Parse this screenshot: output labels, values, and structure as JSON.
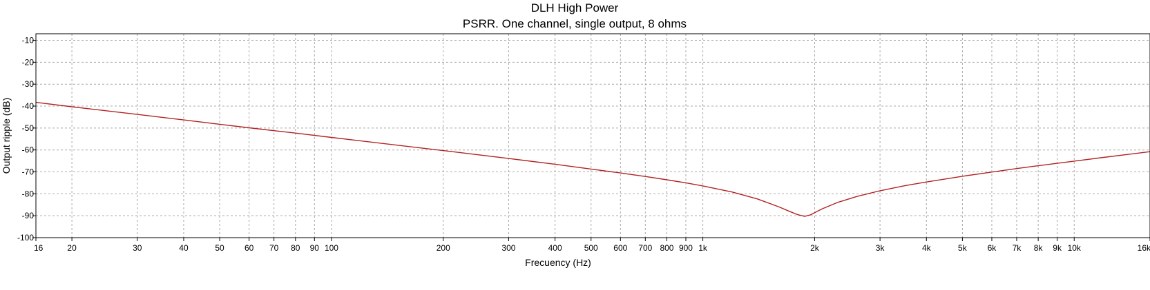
{
  "chart_data": {
    "type": "line",
    "title": "DLH High Power",
    "subtitle": "PSRR. One channel, single output, 8 ohms",
    "xlabel": "Frecuency (Hz)",
    "ylabel": "Output ripple (dB)",
    "x_scale": "log",
    "xlim": [
      16,
      16000
    ],
    "ylim": [
      -100,
      -7
    ],
    "grid": true,
    "x_ticks": [
      {
        "value": 16,
        "label": "16"
      },
      {
        "value": 20,
        "label": "20"
      },
      {
        "value": 30,
        "label": "30"
      },
      {
        "value": 40,
        "label": "40"
      },
      {
        "value": 50,
        "label": "50"
      },
      {
        "value": 60,
        "label": "60"
      },
      {
        "value": 70,
        "label": "70"
      },
      {
        "value": 80,
        "label": "80"
      },
      {
        "value": 90,
        "label": "90"
      },
      {
        "value": 100,
        "label": "100"
      },
      {
        "value": 200,
        "label": "200"
      },
      {
        "value": 300,
        "label": "300"
      },
      {
        "value": 400,
        "label": "400"
      },
      {
        "value": 500,
        "label": "500"
      },
      {
        "value": 600,
        "label": "600"
      },
      {
        "value": 700,
        "label": "700"
      },
      {
        "value": 800,
        "label": "800"
      },
      {
        "value": 900,
        "label": "900"
      },
      {
        "value": 1000,
        "label": "1k"
      },
      {
        "value": 2000,
        "label": "2k"
      },
      {
        "value": 3000,
        "label": "3k"
      },
      {
        "value": 4000,
        "label": "4k"
      },
      {
        "value": 5000,
        "label": "5k"
      },
      {
        "value": 6000,
        "label": "6k"
      },
      {
        "value": 7000,
        "label": "7k"
      },
      {
        "value": 8000,
        "label": "8k"
      },
      {
        "value": 9000,
        "label": "9k"
      },
      {
        "value": 10000,
        "label": "10k"
      },
      {
        "value": 16000,
        "label": "16k"
      }
    ],
    "y_ticks": [
      {
        "value": -10,
        "label": "-10"
      },
      {
        "value": -20,
        "label": "-20"
      },
      {
        "value": -30,
        "label": "-30"
      },
      {
        "value": -40,
        "label": "-40"
      },
      {
        "value": -50,
        "label": "-50"
      },
      {
        "value": -60,
        "label": "-60"
      },
      {
        "value": -70,
        "label": "-70"
      },
      {
        "value": -80,
        "label": "-80"
      },
      {
        "value": -90,
        "label": "-90"
      },
      {
        "value": -100,
        "label": "-100"
      }
    ],
    "series": [
      {
        "color": "#b22222",
        "x": [
          16,
          20,
          30,
          40,
          50,
          60,
          70,
          80,
          100,
          200,
          300,
          400,
          500,
          600,
          700,
          800,
          900,
          1000,
          1200,
          1400,
          1600,
          1700,
          1800,
          1880,
          1950,
          2000,
          2100,
          2300,
          2600,
          3000,
          3500,
          4000,
          5000,
          6000,
          7000,
          8000,
          9000,
          10000,
          12000,
          14000,
          16000
        ],
        "y": [
          -38.3,
          -40.3,
          -43.8,
          -46.3,
          -48.3,
          -49.9,
          -51.2,
          -52.3,
          -54.3,
          -60.3,
          -63.9,
          -66.5,
          -68.7,
          -70.5,
          -72.1,
          -73.6,
          -75.0,
          -76.4,
          -79.2,
          -82.3,
          -85.9,
          -87.8,
          -89.5,
          -90.3,
          -89.6,
          -88.6,
          -86.8,
          -84.0,
          -81.2,
          -78.6,
          -76.3,
          -74.6,
          -72.0,
          -70.1,
          -68.5,
          -67.2,
          -66.1,
          -65.1,
          -63.4,
          -62.0,
          -60.8
        ]
      }
    ]
  }
}
